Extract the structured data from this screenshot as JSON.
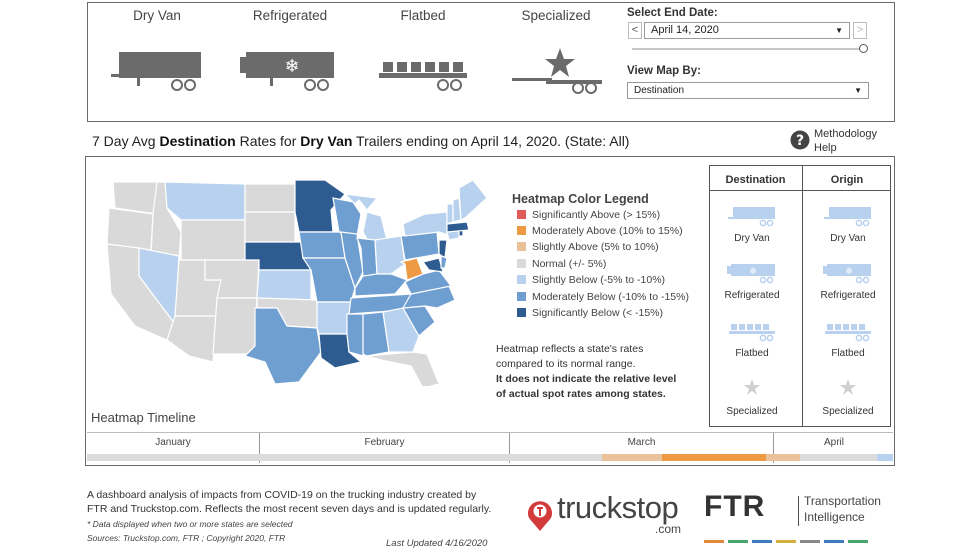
{
  "trailer_types": [
    {
      "label": "Dry Van",
      "icon": "dry-van-trailer-icon"
    },
    {
      "label": "Refrigerated",
      "icon": "refrigerated-trailer-icon"
    },
    {
      "label": "Flatbed",
      "icon": "flatbed-trailer-icon"
    },
    {
      "label": "Specialized",
      "icon": "specialized-trailer-icon"
    }
  ],
  "controls": {
    "end_date_label": "Select End Date:",
    "end_date_value": "April 14, 2020",
    "prev_label": "<",
    "next_label": ">",
    "view_map_label": "View Map By:",
    "view_map_value": "Destination"
  },
  "title": {
    "pre": "7 Day Avg ",
    "metric": "Destination",
    "mid": " Rates for ",
    "trailer": "Dry Van",
    "post": " Trailers ending on April 14, 2020. (State: All)"
  },
  "methodology": {
    "icon": "help-question-icon",
    "line1": "Methodology",
    "line2": "Help"
  },
  "legend": {
    "title": "Heatmap Color Legend",
    "items": [
      {
        "label": "Significantly Above (> 15%)",
        "color": "#e05a5a"
      },
      {
        "label": "Moderately Above (10% to 15%)",
        "color": "#ee9a44"
      },
      {
        "label": "Slightly Above (5% to 10%)",
        "color": "#e9c29c"
      },
      {
        "label": "Normal (+/- 5%)",
        "color": "#d9d9d9"
      },
      {
        "label": "Slightly Below (-5% to -10%)",
        "color": "#b8d1ee"
      },
      {
        "label": "Moderately Below (-10% to -15%)",
        "color": "#6f9ed1"
      },
      {
        "label": "Significantly Below (< -15%)",
        "color": "#2e5c91"
      }
    ]
  },
  "note": {
    "line1": "Heatmap reflects a state's rates",
    "line2": "compared to its normal range.",
    "line3": "It does not indicate the relative level",
    "line4": "of actual spot rates among states."
  },
  "side_panel": {
    "destination_header": "Destination",
    "origin_header": "Origin",
    "items": [
      "Dry Van",
      "Refrigerated",
      "Flatbed",
      "Specialized"
    ]
  },
  "timeline": {
    "title": "Heatmap Timeline",
    "months": [
      "January",
      "February",
      "March",
      "April"
    ]
  },
  "footer": {
    "line1": "A dashboard analysis of impacts from COVID-19 on the trucking industry created by",
    "line2": "FTR and Truckstop.com. Reflects the most recent seven days and is updated regularly.",
    "asterisk": "* Data displayed when two or more states are selected",
    "sources": "Sources: Truckstop.com, FTR ; Copyright 2020, FTR",
    "updated": "Last Updated 4/16/2020"
  },
  "logos": {
    "truckstop_word": "truckstop",
    "truckstop_sub": ".com",
    "ftr_word": "FTR",
    "ftr_line1": "Transportation",
    "ftr_line2": "Intelligence"
  },
  "colors": {
    "normal": "#d9d9d9",
    "slightly_below": "#b8d1ee",
    "moderately_below": "#6f9ed1",
    "significantly_below": "#2e5c91",
    "moderately_above": "#ee9a44",
    "slightly_above": "#e9c29c",
    "icon_active": "#6b6b6b",
    "icon_muted": "#b8d1ee"
  }
}
